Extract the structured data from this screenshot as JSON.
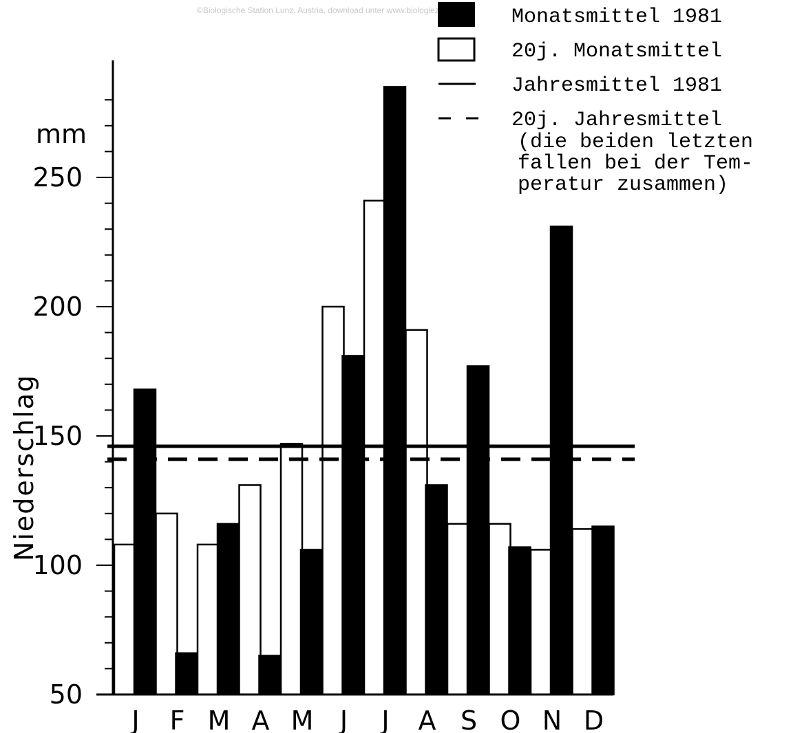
{
  "watermark": "©Biologische Station Lunz, Austria, download unter www.biologiezentrum.at",
  "chart_data": {
    "type": "bar",
    "title": "",
    "xlabel": "",
    "ylabel": "Niederschlag",
    "unit": "mm",
    "ylim": [
      50,
      290
    ],
    "yticks": [
      50,
      100,
      150,
      200,
      250
    ],
    "categories": [
      "J",
      "F",
      "M",
      "A",
      "M",
      "J",
      "J",
      "A",
      "S",
      "O",
      "N",
      "D"
    ],
    "series": [
      {
        "name": "20j. Monatsmittel",
        "fill": "#ffffff",
        "values": [
          108,
          120,
          108,
          131,
          147,
          200,
          241,
          191,
          116,
          116,
          106,
          114
        ]
      },
      {
        "name": "Monatsmittel 1981",
        "fill": "#000000",
        "values": [
          168,
          66,
          116,
          65,
          106,
          181,
          285,
          131,
          177,
          107,
          231,
          115
        ]
      }
    ],
    "reference_lines": [
      {
        "name": "Jahresmittel 1981",
        "value": 146,
        "style": "solid"
      },
      {
        "name": "20j. Jahresmittel",
        "value": 141,
        "style": "dashed"
      }
    ],
    "legend": {
      "placement": "top-right",
      "entries": [
        {
          "label": "Monatsmittel 1981",
          "symbol": "filled-box"
        },
        {
          "label": "20j. Monatsmittel",
          "symbol": "open-box"
        },
        {
          "label": "Jahresmittel 1981",
          "symbol": "solid-line"
        },
        {
          "label": "20j. Jahresmittel",
          "symbol": "dashed-line"
        }
      ],
      "note_lines": [
        "(die beiden letzten",
        "fallen bei der Tem-",
        "peratur zusammen)"
      ]
    }
  }
}
